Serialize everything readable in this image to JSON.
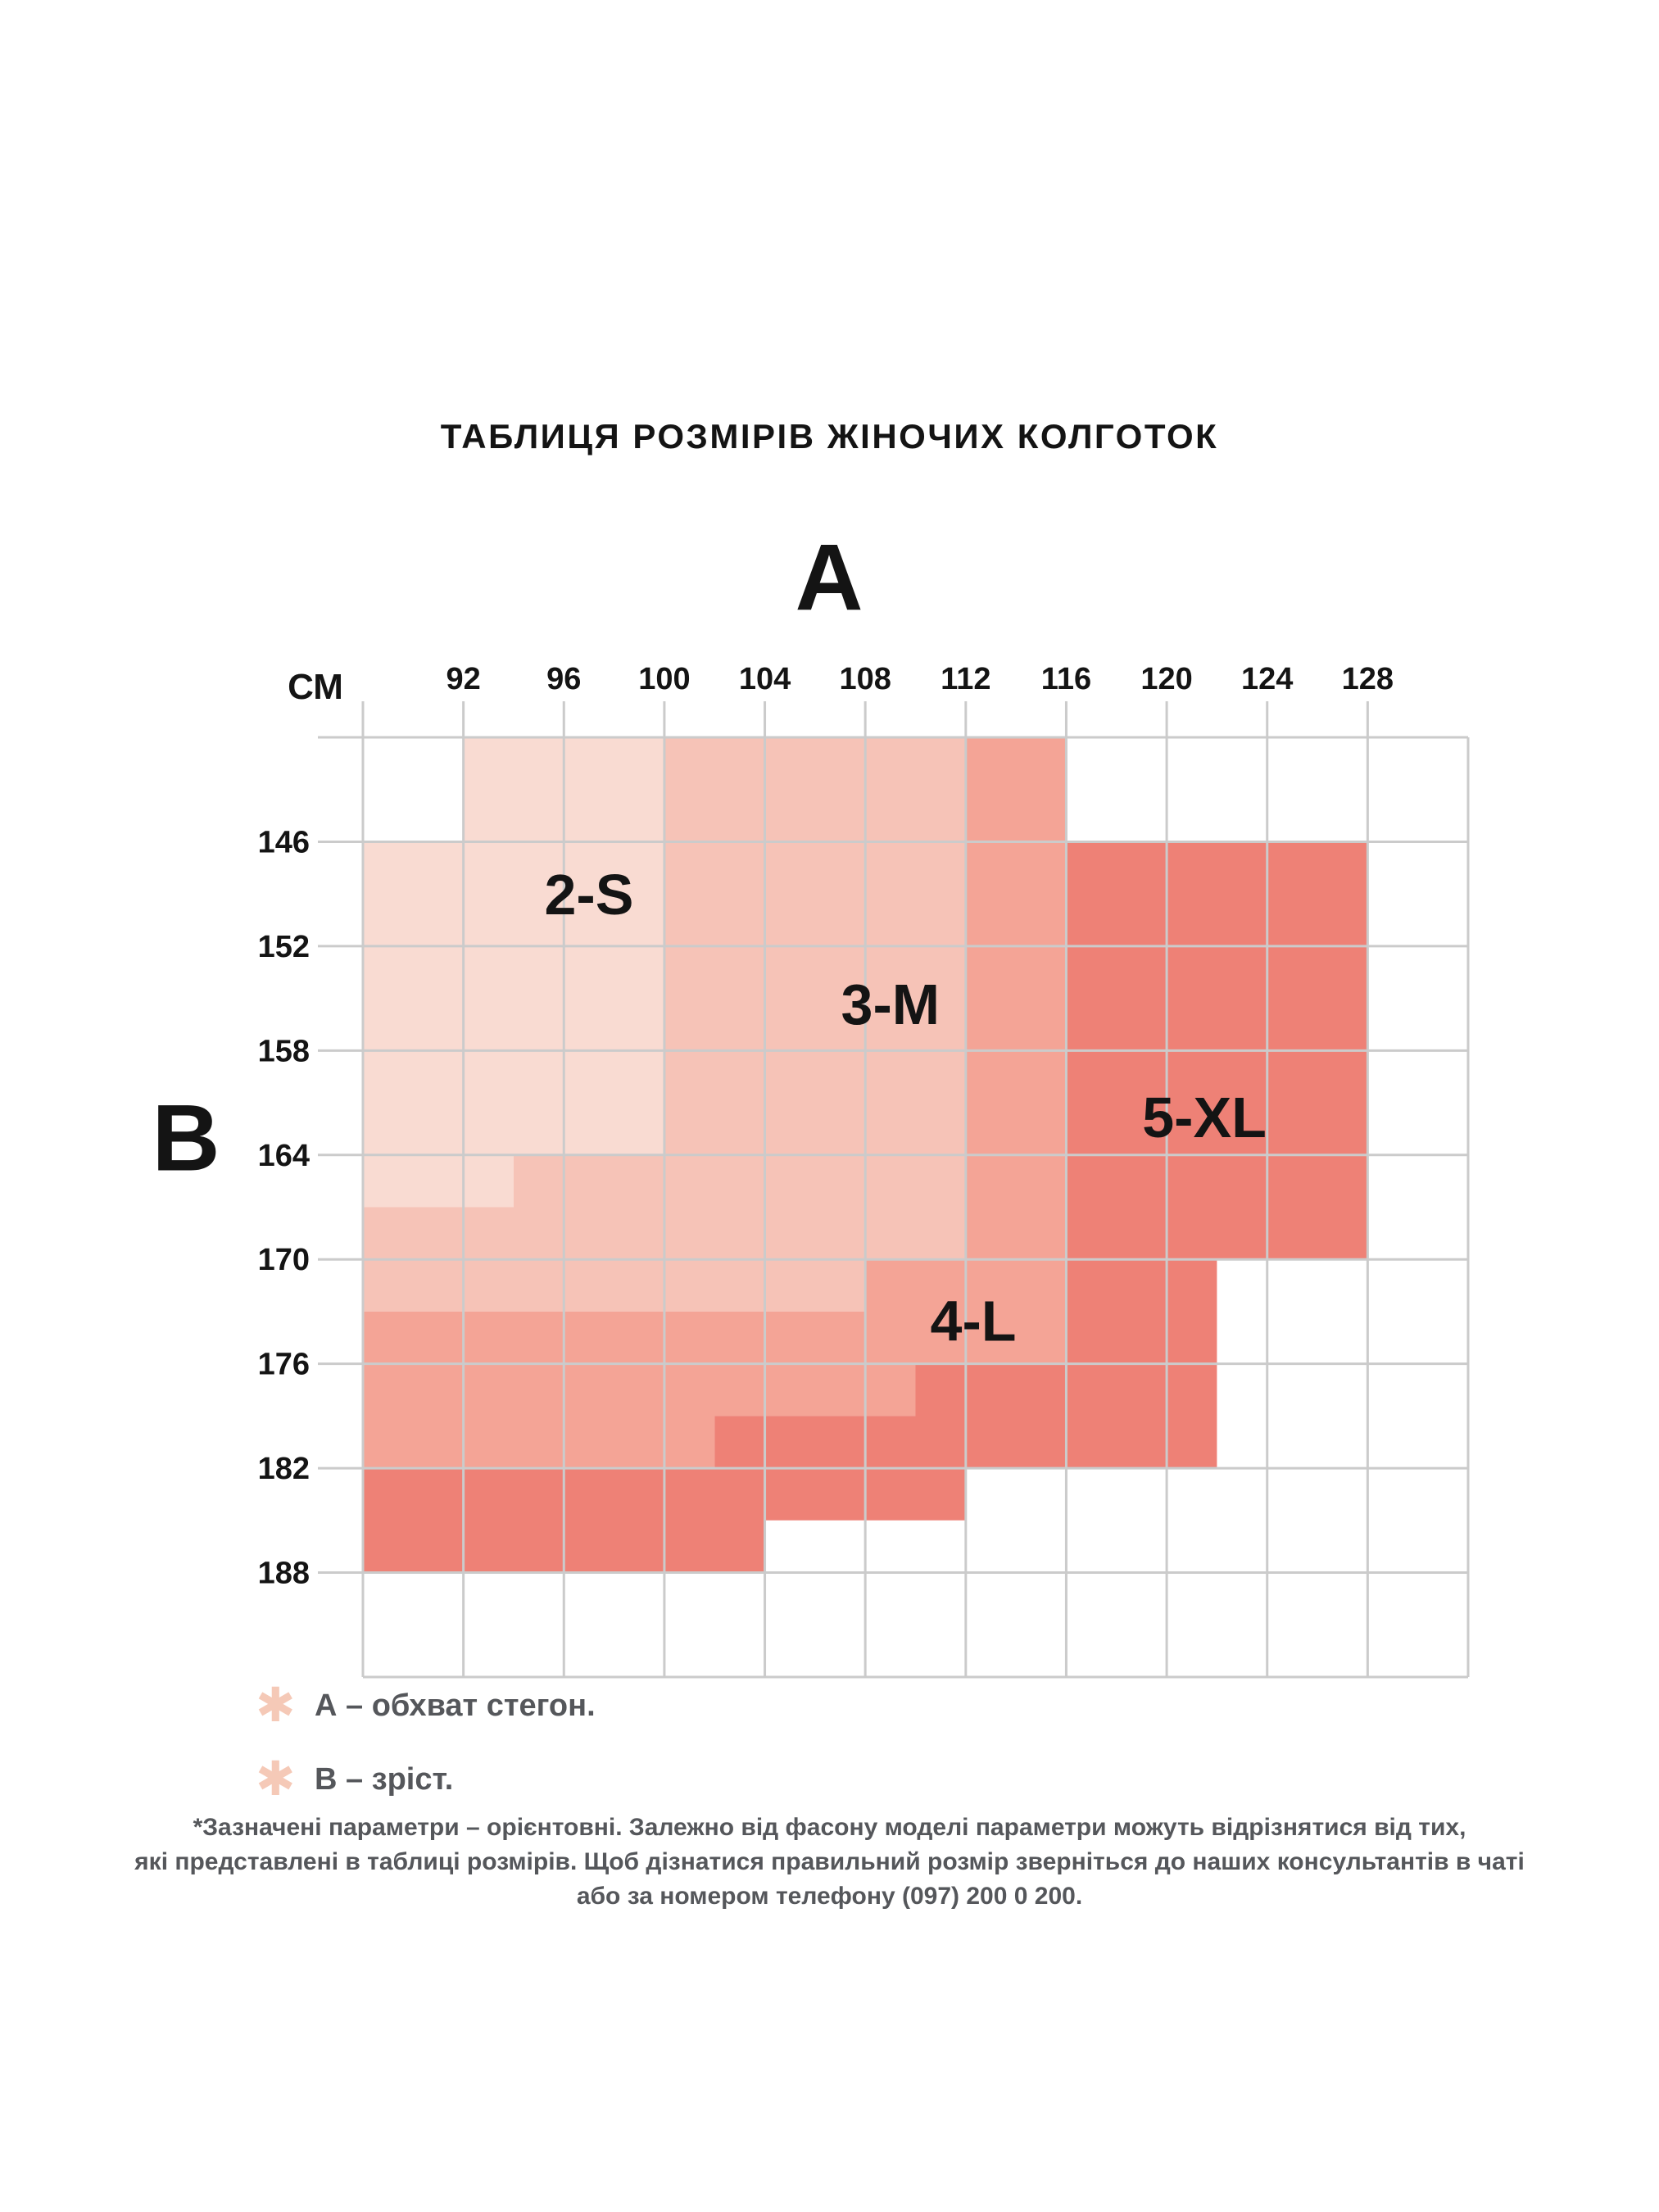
{
  "title": "ТАБЛИЦЯ РОЗМІРІВ ЖІНОЧИХ КОЛГОТОК",
  "chart_data": {
    "type": "area",
    "title": "ТАБЛИЦЯ РОЗМІРІВ ЖІНОЧИХ КОЛГОТОК",
    "grid": true,
    "x_axis": {
      "label": "А",
      "unit_label": "СМ",
      "ticks": [
        92,
        96,
        100,
        104,
        108,
        112,
        116,
        120,
        124,
        128
      ],
      "range": [
        88,
        132
      ],
      "tick_step": 4
    },
    "y_axis": {
      "label": "В",
      "ticks": [
        146,
        152,
        158,
        164,
        170,
        176,
        182,
        188
      ],
      "range": [
        140,
        194
      ],
      "tick_step": 6,
      "direction": "down"
    },
    "regions": [
      {
        "size": "2-S",
        "color": "#f9dbd2",
        "label_anchor_cm": [
          97,
          149
        ],
        "polygon_cm": [
          [
            92,
            140
          ],
          [
            100,
            140
          ],
          [
            100,
            164
          ],
          [
            94,
            164
          ],
          [
            94,
            167
          ],
          [
            88,
            167
          ],
          [
            88,
            146
          ],
          [
            92,
            146
          ]
        ]
      },
      {
        "size": "3-M",
        "color": "#f6c3b7",
        "label_anchor_cm": [
          109,
          155.3
        ],
        "polygon_cm": [
          [
            100,
            140
          ],
          [
            112,
            140
          ],
          [
            112,
            170
          ],
          [
            108,
            170
          ],
          [
            108,
            173
          ],
          [
            88,
            173
          ],
          [
            88,
            167
          ],
          [
            94,
            167
          ],
          [
            94,
            164
          ],
          [
            100,
            164
          ]
        ]
      },
      {
        "size": "4-L",
        "color": "#f4a496",
        "label_anchor_cm": [
          112.3,
          173.5
        ],
        "polygon_cm": [
          [
            112,
            140
          ],
          [
            116,
            140
          ],
          [
            116,
            176
          ],
          [
            110,
            176
          ],
          [
            110,
            179
          ],
          [
            102,
            179
          ],
          [
            102,
            182
          ],
          [
            88,
            182
          ],
          [
            88,
            173
          ],
          [
            108,
            173
          ],
          [
            108,
            170
          ],
          [
            112,
            170
          ]
        ]
      },
      {
        "size": "5-XL",
        "color": "#ee8176",
        "label_anchor_cm": [
          121.5,
          161.8
        ],
        "polygon_cm": [
          [
            116,
            146
          ],
          [
            128,
            146
          ],
          [
            128,
            170
          ],
          [
            122,
            170
          ],
          [
            122,
            182
          ],
          [
            112,
            182
          ],
          [
            112,
            185
          ],
          [
            104,
            185
          ],
          [
            104,
            188
          ],
          [
            88,
            188
          ],
          [
            88,
            182
          ],
          [
            102,
            182
          ],
          [
            102,
            179
          ],
          [
            110,
            179
          ],
          [
            110,
            176
          ],
          [
            116,
            176
          ]
        ]
      }
    ]
  },
  "legend": {
    "items": [
      {
        "icon": "asterisk",
        "glyph": "✱",
        "text": "А – обхват стегон."
      },
      {
        "icon": "asterisk",
        "glyph": "✱",
        "text": "В – зріст."
      }
    ]
  },
  "footnote": {
    "lines": [
      "*Зазначені параметри – орієнтовні. Залежно від фасону моделі параметри можуть відрізнятися від тих,",
      "які представлені в таблиці розмірів. Щоб дізнатися правильний розмір зверніться до наших консультантів в чаті",
      "або за номером телефону (097) 200 0 200."
    ]
  },
  "colors": {
    "grid_line": "#cbcbcb",
    "text_dark": "#141414",
    "text_gray": "#55575b",
    "asterisk": "#f5c9b7"
  }
}
